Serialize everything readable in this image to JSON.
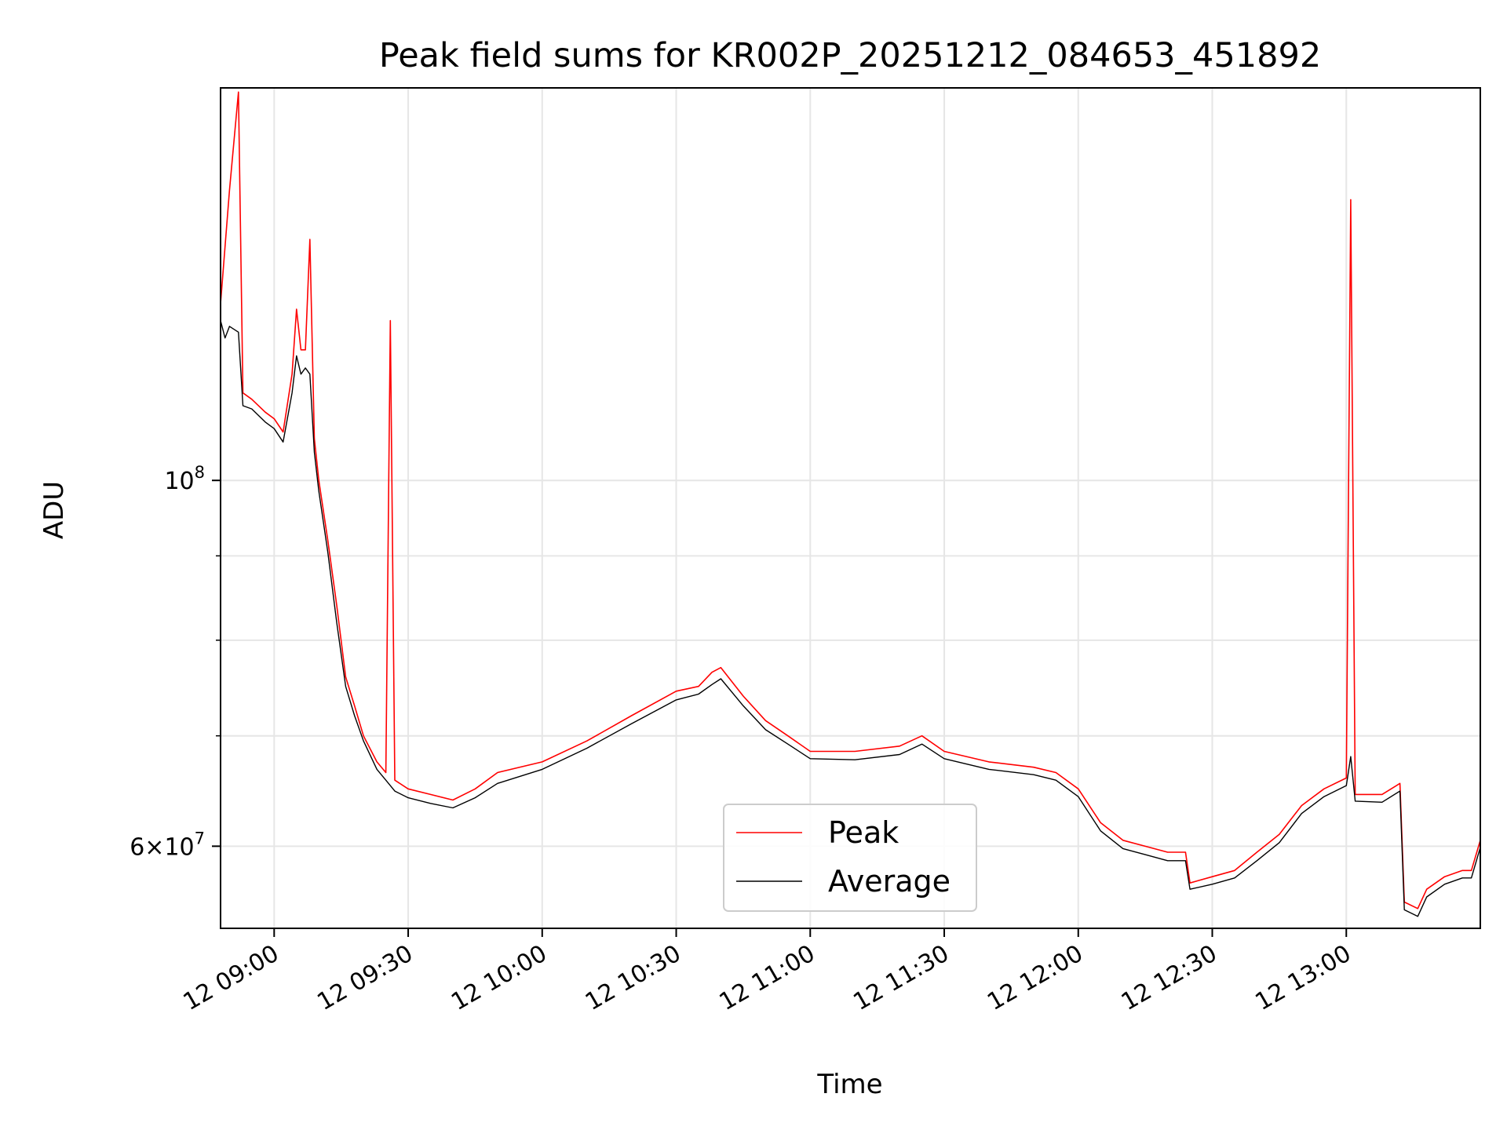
{
  "chart_data": {
    "type": "line",
    "title": "Peak field sums for KR002P_20251212_084653_451892",
    "xlabel": "Time",
    "ylabel": "ADU",
    "yscale": "log",
    "ylim": [
      53500000,
      173000000
    ],
    "xlim": [
      "12 08:48",
      "13:30"
    ],
    "x_tick_labels": [
      "12 09:00",
      "12 09:30",
      "12 10:00",
      "12 10:30",
      "12 11:00",
      "12 11:30",
      "12 12:00",
      "12 12:30",
      "12 13:00"
    ],
    "y_tick_labels": [
      {
        "value": 100000000,
        "base": "10",
        "exp": "8"
      },
      {
        "value": 60000000,
        "coef": "6",
        "base": "10",
        "exp": "7"
      }
    ],
    "y_minor_ticks": [
      70000000,
      80000000,
      90000000
    ],
    "grid": true,
    "legend": {
      "position": "lower-center",
      "entries": [
        "Peak",
        "Average"
      ]
    },
    "series": [
      {
        "name": "Peak",
        "color": "#ff0000",
        "points": [
          [
            "08:48",
            128000000
          ],
          [
            "08:50",
            150000000
          ],
          [
            "08:52",
            172000000
          ],
          [
            "08:53",
            113000000
          ],
          [
            "08:55",
            112000000
          ],
          [
            "08:58",
            110000000
          ],
          [
            "09:00",
            109000000
          ],
          [
            "09:02",
            107000000
          ],
          [
            "09:04",
            116000000
          ],
          [
            "09:05",
            127000000
          ],
          [
            "09:06",
            120000000
          ],
          [
            "09:07",
            120000000
          ],
          [
            "09:08",
            140000000
          ],
          [
            "09:09",
            106000000
          ],
          [
            "09:10",
            100000000
          ],
          [
            "09:12",
            92000000
          ],
          [
            "09:14",
            84000000
          ],
          [
            "09:16",
            76000000
          ],
          [
            "09:18",
            73000000
          ],
          [
            "09:20",
            70000000
          ],
          [
            "09:23",
            67500000
          ],
          [
            "09:25",
            66500000
          ],
          [
            "09:26",
            125000000
          ],
          [
            "09:27",
            65800000
          ],
          [
            "09:30",
            65000000
          ],
          [
            "09:35",
            64500000
          ],
          [
            "09:40",
            64000000
          ],
          [
            "09:45",
            65000000
          ],
          [
            "09:50",
            66500000
          ],
          [
            "10:00",
            67500000
          ],
          [
            "10:10",
            69500000
          ],
          [
            "10:20",
            72000000
          ],
          [
            "10:30",
            74500000
          ],
          [
            "10:35",
            75000000
          ],
          [
            "10:38",
            76500000
          ],
          [
            "10:40",
            77000000
          ],
          [
            "10:45",
            74000000
          ],
          [
            "10:50",
            71500000
          ],
          [
            "10:55",
            70000000
          ],
          [
            "11:00",
            68500000
          ],
          [
            "11:10",
            68500000
          ],
          [
            "11:20",
            69000000
          ],
          [
            "11:25",
            70000000
          ],
          [
            "11:30",
            68500000
          ],
          [
            "11:40",
            67500000
          ],
          [
            "11:50",
            67000000
          ],
          [
            "11:55",
            66500000
          ],
          [
            "12:00",
            65000000
          ],
          [
            "12:05",
            62000000
          ],
          [
            "12:10",
            60500000
          ],
          [
            "12:15",
            60000000
          ],
          [
            "12:20",
            59500000
          ],
          [
            "12:24",
            59500000
          ],
          [
            "12:25",
            57000000
          ],
          [
            "12:30",
            57500000
          ],
          [
            "12:35",
            58000000
          ],
          [
            "12:40",
            59500000
          ],
          [
            "12:45",
            61000000
          ],
          [
            "12:50",
            63500000
          ],
          [
            "12:55",
            65000000
          ],
          [
            "13:00",
            66000000
          ],
          [
            "13:01",
            148000000
          ],
          [
            "13:02",
            64500000
          ],
          [
            "13:08",
            64500000
          ],
          [
            "13:12",
            65500000
          ],
          [
            "13:13",
            55500000
          ],
          [
            "13:16",
            55000000
          ],
          [
            "13:18",
            56500000
          ],
          [
            "13:22",
            57500000
          ],
          [
            "13:26",
            58000000
          ],
          [
            "13:28",
            58000000
          ],
          [
            "13:30",
            60500000
          ]
        ]
      },
      {
        "name": "Average",
        "color": "#000000",
        "points": [
          [
            "08:48",
            125000000
          ],
          [
            "08:49",
            122000000
          ],
          [
            "08:50",
            124000000
          ],
          [
            "08:52",
            123000000
          ],
          [
            "08:53",
            111000000
          ],
          [
            "08:55",
            110500000
          ],
          [
            "08:58",
            108500000
          ],
          [
            "09:00",
            107500000
          ],
          [
            "09:02",
            105500000
          ],
          [
            "09:04",
            113000000
          ],
          [
            "09:05",
            119000000
          ],
          [
            "09:06",
            116000000
          ],
          [
            "09:07",
            117000000
          ],
          [
            "09:08",
            116000000
          ],
          [
            "09:09",
            104000000
          ],
          [
            "09:10",
            98500000
          ],
          [
            "09:12",
            90500000
          ],
          [
            "09:14",
            82000000
          ],
          [
            "09:16",
            75000000
          ],
          [
            "09:18",
            72000000
          ],
          [
            "09:20",
            69500000
          ],
          [
            "09:23",
            66800000
          ],
          [
            "09:25",
            65800000
          ],
          [
            "09:27",
            64800000
          ],
          [
            "09:30",
            64200000
          ],
          [
            "09:35",
            63700000
          ],
          [
            "09:40",
            63300000
          ],
          [
            "09:45",
            64200000
          ],
          [
            "09:50",
            65500000
          ],
          [
            "10:00",
            66800000
          ],
          [
            "10:10",
            68800000
          ],
          [
            "10:20",
            71200000
          ],
          [
            "10:30",
            73600000
          ],
          [
            "10:35",
            74200000
          ],
          [
            "10:38",
            75200000
          ],
          [
            "10:40",
            75800000
          ],
          [
            "10:45",
            73000000
          ],
          [
            "10:50",
            70600000
          ],
          [
            "10:55",
            69200000
          ],
          [
            "11:00",
            67800000
          ],
          [
            "11:10",
            67700000
          ],
          [
            "11:20",
            68200000
          ],
          [
            "11:25",
            69200000
          ],
          [
            "11:30",
            67800000
          ],
          [
            "11:40",
            66800000
          ],
          [
            "11:50",
            66300000
          ],
          [
            "11:55",
            65800000
          ],
          [
            "12:00",
            64300000
          ],
          [
            "12:05",
            61300000
          ],
          [
            "12:10",
            59800000
          ],
          [
            "12:15",
            59300000
          ],
          [
            "12:20",
            58800000
          ],
          [
            "12:24",
            58800000
          ],
          [
            "12:25",
            56500000
          ],
          [
            "12:30",
            56900000
          ],
          [
            "12:35",
            57400000
          ],
          [
            "12:40",
            58800000
          ],
          [
            "12:45",
            60300000
          ],
          [
            "12:50",
            62800000
          ],
          [
            "12:55",
            64300000
          ],
          [
            "13:00",
            65300000
          ],
          [
            "13:01",
            68000000
          ],
          [
            "13:02",
            63900000
          ],
          [
            "13:08",
            63800000
          ],
          [
            "13:12",
            64800000
          ],
          [
            "13:13",
            54900000
          ],
          [
            "13:16",
            54400000
          ],
          [
            "13:18",
            55900000
          ],
          [
            "13:22",
            56900000
          ],
          [
            "13:26",
            57400000
          ],
          [
            "13:28",
            57400000
          ],
          [
            "13:30",
            59900000
          ]
        ]
      }
    ]
  }
}
